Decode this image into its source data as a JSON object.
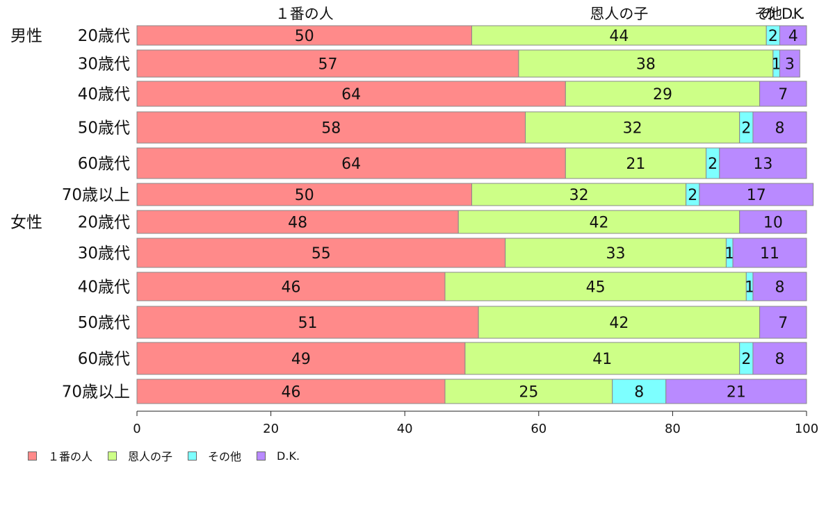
{
  "chart_data": {
    "type": "bar",
    "orientation": "horizontal",
    "stacked": true,
    "top_labels": [
      "１番の人",
      "恩人の子",
      "その他",
      "D.K."
    ],
    "categories": [
      {
        "group": "男性",
        "label": "20歳代"
      },
      {
        "group": "",
        "label": "30歳代"
      },
      {
        "group": "",
        "label": "40歳代"
      },
      {
        "group": "",
        "label": "50歳代"
      },
      {
        "group": "",
        "label": "60歳代"
      },
      {
        "group": "",
        "label": "70歳以上"
      },
      {
        "group": "女性",
        "label": "20歳代"
      },
      {
        "group": "",
        "label": "30歳代"
      },
      {
        "group": "",
        "label": "40歳代"
      },
      {
        "group": "",
        "label": "50歳代"
      },
      {
        "group": "",
        "label": "60歳代"
      },
      {
        "group": "",
        "label": "70歳以上"
      }
    ],
    "series": [
      {
        "name": "１番の人",
        "color": "#ff8a8a",
        "values": [
          50,
          57,
          64,
          58,
          64,
          50,
          48,
          55,
          46,
          51,
          49,
          46
        ]
      },
      {
        "name": "恩人の子",
        "color": "#cdff87",
        "values": [
          44,
          38,
          29,
          32,
          21,
          32,
          42,
          33,
          45,
          42,
          41,
          25
        ]
      },
      {
        "name": "その他",
        "color": "#7dffff",
        "values": [
          2,
          1,
          0,
          2,
          2,
          2,
          0,
          1,
          1,
          0,
          2,
          8
        ]
      },
      {
        "name": "D.K.",
        "color": "#b98aff",
        "values": [
          4,
          3,
          7,
          8,
          13,
          17,
          10,
          11,
          8,
          7,
          8,
          21
        ]
      }
    ],
    "xlim": [
      0,
      100
    ],
    "xticks": [
      0,
      20,
      40,
      60,
      80,
      100
    ],
    "legend_position": "bottom-left",
    "grid": false
  }
}
